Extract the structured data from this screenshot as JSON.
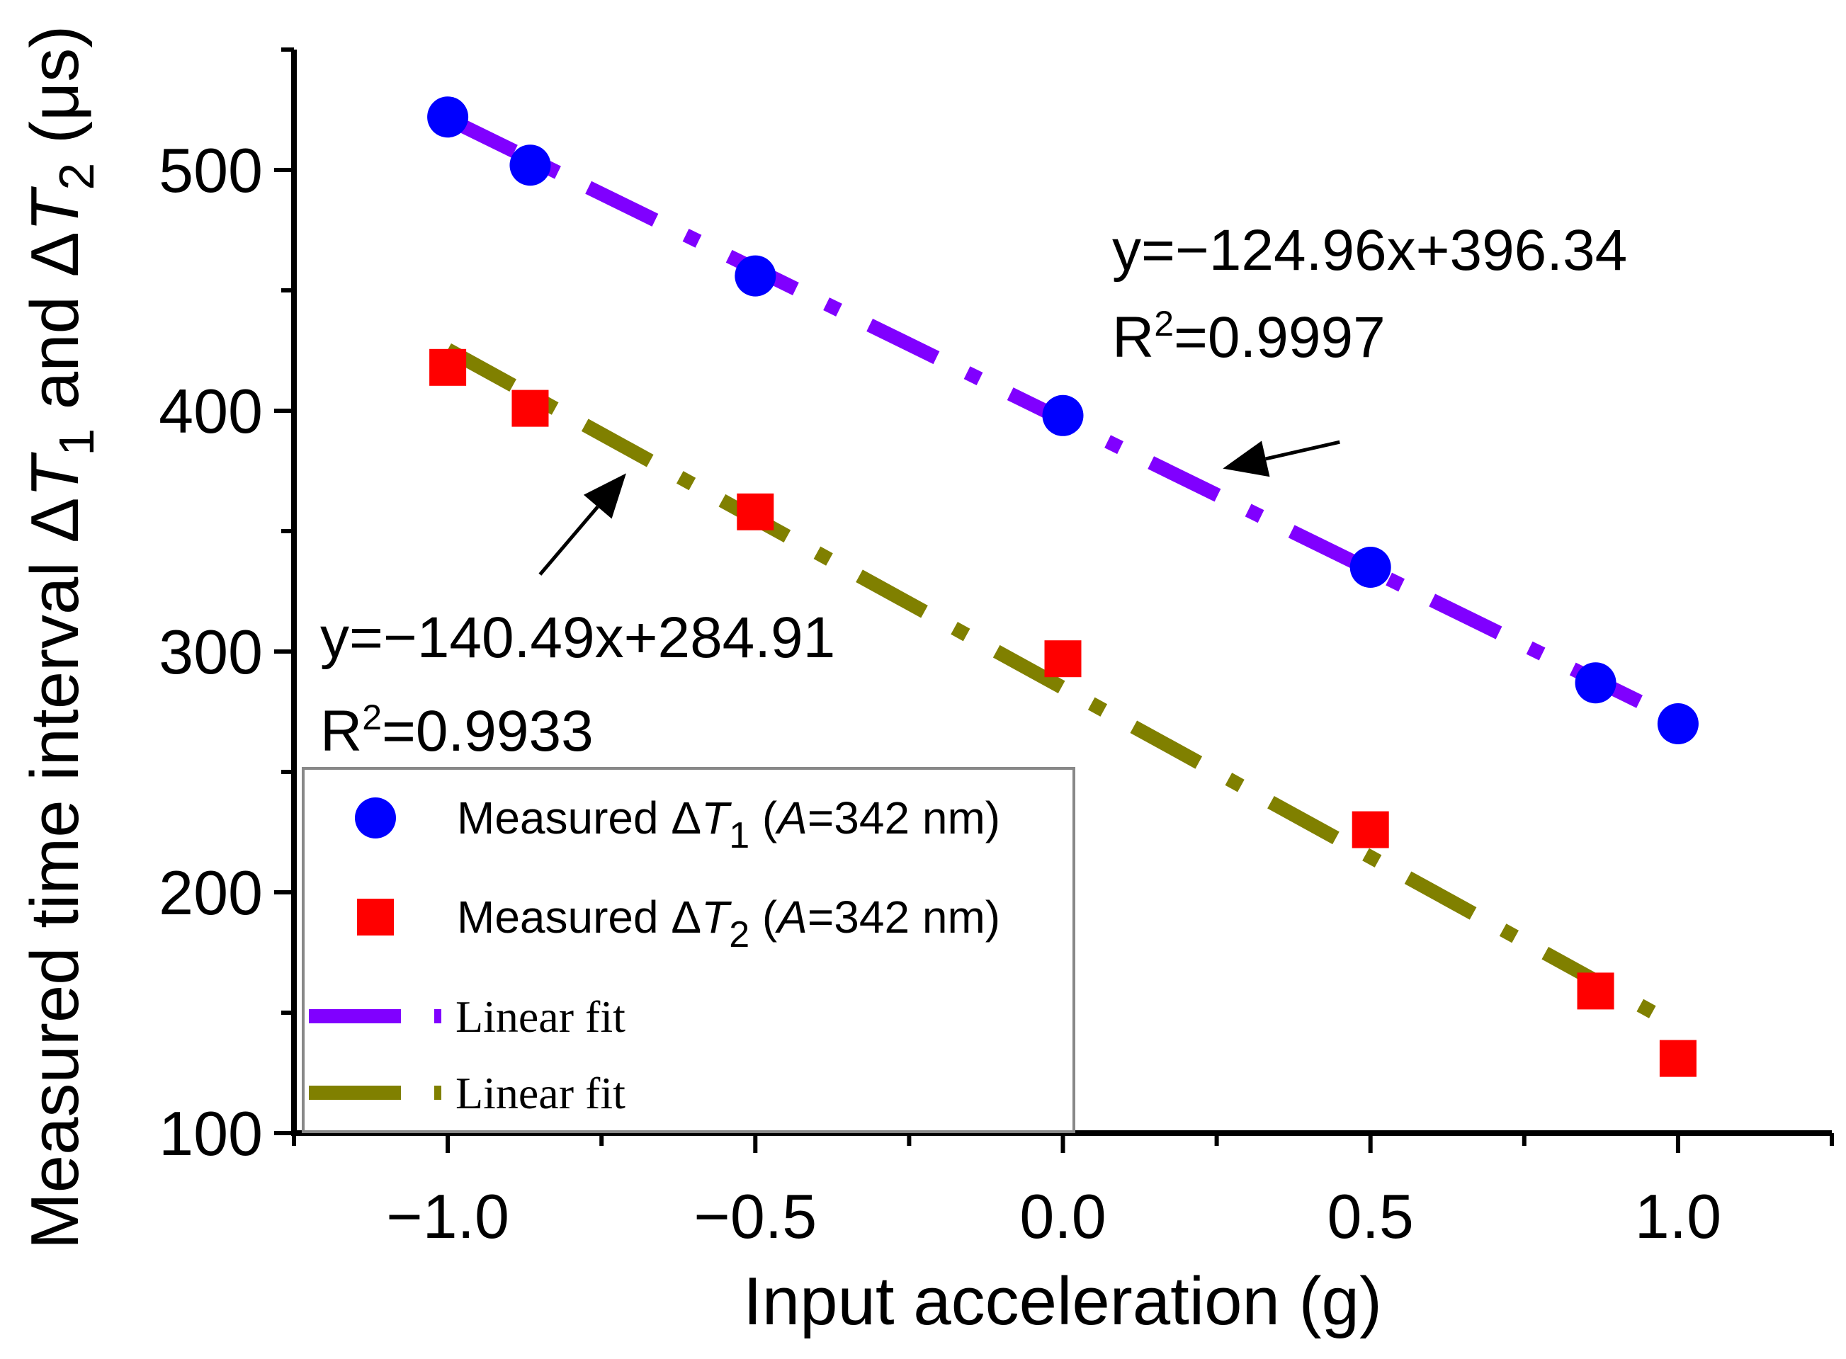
{
  "chart_data": {
    "type": "scatter",
    "title": "",
    "xlabel": "Input acceleration (g)",
    "ylabel": "Measured time interval ΔT₁ and ΔT₂ (μs)",
    "ylabel_parts": {
      "prefix": "Measured time interval ",
      "delta": "Δ",
      "T": "T",
      "sub1": "1",
      "and": " and ",
      "sub2": "2",
      "unit": " (μs)"
    },
    "xlim": [
      -1.25,
      1.25
    ],
    "ylim": [
      100,
      550
    ],
    "x_ticks": [
      -1.0,
      -0.5,
      0.0,
      0.5,
      1.0
    ],
    "x_tick_labels": [
      "−1.0",
      "−0.5",
      "0.0",
      "0.5",
      "1.0"
    ],
    "x_minor_ticks": [
      -1.25,
      -0.75,
      -0.25,
      0.25,
      0.75,
      1.25
    ],
    "y_ticks": [
      100,
      200,
      300,
      400,
      500
    ],
    "y_tick_labels": [
      "100",
      "200",
      "300",
      "400",
      "500"
    ],
    "y_minor_ticks": [
      150,
      250,
      350,
      450,
      550
    ],
    "grid": false,
    "legend_position": "bottom-left",
    "series": [
      {
        "name": "Measured ΔT1 (A=342 nm)",
        "marker": "circle",
        "color": "#0000ff",
        "x": [
          -1.0,
          -0.866,
          -0.5,
          0.0,
          0.5,
          0.866,
          1.0
        ],
        "y": [
          522,
          502,
          456,
          398,
          335,
          287,
          270
        ]
      },
      {
        "name": "Measured ΔT2 (A=342 nm)",
        "marker": "square",
        "color": "#ff0000",
        "x": [
          -1.0,
          -0.866,
          -0.5,
          0.0,
          0.5,
          0.866,
          1.0
        ],
        "y": [
          418,
          401,
          358,
          297,
          226,
          159,
          131
        ]
      }
    ],
    "fits": [
      {
        "name": "Linear fit",
        "color": "#8000ff",
        "slope": -124.96,
        "intercept": 396.34,
        "x_range": [
          -1.0,
          1.0
        ],
        "equation": "y=−124.96x+396.34",
        "r2_prefix": "R",
        "r2_sup": "2",
        "r2_value": "=0.9997",
        "arrow_from": [
          0.45,
          387
        ],
        "arrow_to": [
          0.26,
          376
        ]
      },
      {
        "name": "Linear fit",
        "color": "#808000",
        "slope": -140.49,
        "intercept": 284.91,
        "x_range": [
          -1.0,
          1.0
        ],
        "equation": "y=−140.49x+284.91",
        "r2_prefix": "R",
        "r2_sup": "2",
        "r2_value": "=0.9933",
        "arrow_from": [
          -0.85,
          332
        ],
        "arrow_to": [
          -0.71,
          374
        ]
      }
    ],
    "legend": [
      {
        "kind": "circle",
        "color": "#0000ff",
        "label_prefix": "Measured ",
        "delta": "Δ",
        "T": "T",
        "sub": "1",
        "paren_open": " (",
        "A": "A",
        "rest": "=342 nm)"
      },
      {
        "kind": "square",
        "color": "#ff0000",
        "label_prefix": "Measured ",
        "delta": "Δ",
        "T": "T",
        "sub": "2",
        "paren_open": " (",
        "A": "A",
        "rest": "=342 nm)"
      },
      {
        "kind": "line",
        "color": "#8000ff",
        "label": "Linear fit"
      },
      {
        "kind": "line",
        "color": "#808000",
        "label": "Linear fit"
      }
    ]
  }
}
